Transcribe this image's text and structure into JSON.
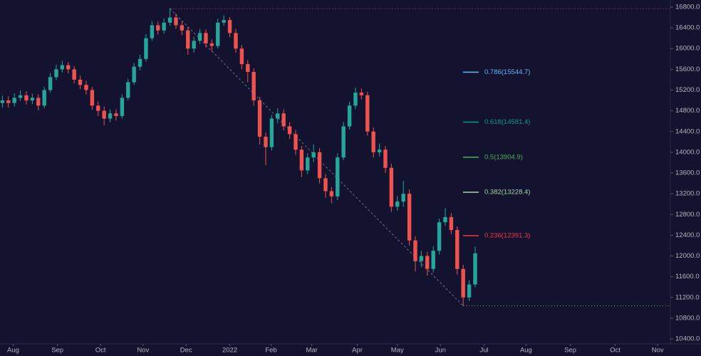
{
  "chart_data": {
    "type": "candlestick",
    "open": [
      14950,
      15000,
      14950,
      15050,
      15100,
      15000,
      15050,
      14900,
      15200,
      15450,
      15600,
      15680,
      15600,
      15400,
      15300,
      15200,
      14900,
      14800,
      14650,
      14750,
      14700,
      15050,
      15350,
      15650,
      15800,
      16200,
      16450,
      16350,
      16500,
      16600,
      16450,
      16350,
      16000,
      16150,
      16300,
      16100,
      16050,
      16500,
      16550,
      16300,
      16000,
      15700,
      15550,
      15000,
      14300,
      14100,
      14650,
      14750,
      14500,
      14350,
      14050,
      13650,
      13900,
      14000,
      13500,
      13250,
      13150,
      13900,
      14500,
      14900,
      15150,
      15100,
      14400,
      14000,
      14050,
      13700,
      12950,
      13050,
      13200,
      12300,
      11900,
      12000,
      11750,
      12100,
      12650,
      12750,
      12500,
      11750,
      11200,
      11450
    ],
    "high": [
      15090,
      15080,
      15140,
      15190,
      15180,
      15130,
      15120,
      15260,
      15530,
      15690,
      15760,
      15740,
      15660,
      15480,
      15380,
      15260,
      14980,
      14880,
      14830,
      14830,
      15120,
      15420,
      15720,
      15880,
      16280,
      16530,
      16520,
      16580,
      16780,
      16680,
      16520,
      16420,
      16230,
      16380,
      16370,
      16180,
      16580,
      16640,
      16610,
      16380,
      16070,
      15780,
      15620,
      15070,
      14380,
      14720,
      14850,
      14830,
      14580,
      14430,
      14120,
      13980,
      14150,
      14080,
      13580,
      13330,
      13980,
      14580,
      14980,
      15250,
      15230,
      15170,
      14480,
      14170,
      14120,
      13780,
      13150,
      13450,
      13280,
      12380,
      12100,
      12080,
      12190,
      12720,
      12920,
      12830,
      12570,
      11830,
      11530,
      12180
    ],
    "low": [
      14860,
      14860,
      14880,
      14990,
      14920,
      14930,
      14810,
      14850,
      15150,
      15390,
      15540,
      15520,
      15330,
      15220,
      15110,
      14820,
      14700,
      14520,
      14580,
      14610,
      14650,
      15000,
      15300,
      15580,
      15750,
      16150,
      16270,
      16290,
      16440,
      16380,
      16260,
      15880,
      15920,
      16090,
      16020,
      15940,
      16000,
      16440,
      16220,
      15920,
      15600,
      15350,
      14900,
      14150,
      13750,
      14030,
      14560,
      14420,
      14260,
      13950,
      13520,
      13580,
      13810,
      13400,
      13120,
      13020,
      13080,
      13850,
      14440,
      14830,
      15020,
      14320,
      13900,
      13920,
      13600,
      12850,
      12870,
      12950,
      12200,
      11700,
      11780,
      11620,
      11680,
      12030,
      12580,
      12420,
      11640,
      11040,
      11130,
      11400
    ],
    "close": [
      15000,
      14950,
      15050,
      15100,
      15000,
      15050,
      14900,
      15200,
      15450,
      15600,
      15680,
      15600,
      15400,
      15300,
      15200,
      14900,
      14800,
      14650,
      14750,
      14700,
      15050,
      15350,
      15650,
      15800,
      16200,
      16450,
      16350,
      16500,
      16600,
      16450,
      16350,
      16000,
      16150,
      16300,
      16100,
      16050,
      16500,
      16550,
      16300,
      16000,
      15700,
      15550,
      15000,
      14300,
      14100,
      14650,
      14750,
      14500,
      14350,
      14050,
      13650,
      13900,
      14000,
      13500,
      13250,
      13150,
      13900,
      14500,
      14900,
      15150,
      15100,
      14400,
      14000,
      14050,
      13700,
      12950,
      13050,
      13200,
      12300,
      11900,
      12000,
      11750,
      12100,
      12650,
      12750,
      12500,
      11750,
      11200,
      11450,
      12050
    ],
    "up_color": "#26a69a",
    "down_color": "#ef5350",
    "xlim": [
      -0.4,
      111.5
    ],
    "xticks": [
      {
        "value": 1.8,
        "label": "Aug"
      },
      {
        "value": 9.2,
        "label": "Sep"
      },
      {
        "value": 16.4,
        "label": "Oct"
      },
      {
        "value": 23.5,
        "label": "Nov"
      },
      {
        "value": 30.7,
        "label": "Dec"
      },
      {
        "value": 38,
        "label": "2022"
      },
      {
        "value": 44.9,
        "label": "Feb"
      },
      {
        "value": 51.7,
        "label": "Mar"
      },
      {
        "value": 59.3,
        "label": "Apr"
      },
      {
        "value": 66,
        "label": "May"
      },
      {
        "value": 73.2,
        "label": "Jun"
      },
      {
        "value": 80.5,
        "label": "Jul"
      },
      {
        "value": 87.5,
        "label": "Aug"
      },
      {
        "value": 94.9,
        "label": "Sep"
      },
      {
        "value": 102.4,
        "label": "Oct"
      },
      {
        "value": 109.5,
        "label": "Nov"
      }
    ],
    "ylim": [
      10304,
      16937
    ],
    "yticks": [
      {
        "value": 10400,
        "label": "10400.0"
      },
      {
        "value": 10800,
        "label": "10800.0"
      },
      {
        "value": 11200,
        "label": "11200.0"
      },
      {
        "value": 11600,
        "label": "11600.0"
      },
      {
        "value": 12000,
        "label": "12000.0"
      },
      {
        "value": 12400,
        "label": "12400.0"
      },
      {
        "value": 12800,
        "label": "12800.0"
      },
      {
        "value": 13200,
        "label": "13200.0"
      },
      {
        "value": 13600,
        "label": "13600.0"
      },
      {
        "value": 14000,
        "label": "14000.0"
      },
      {
        "value": 14400,
        "label": "14400.0"
      },
      {
        "value": 14800,
        "label": "14800.0"
      },
      {
        "value": 15200,
        "label": "15200.0"
      },
      {
        "value": 15600,
        "label": "15600.0"
      },
      {
        "value": 16000,
        "label": "16000.0"
      },
      {
        "value": 16400,
        "label": "16400.0"
      },
      {
        "value": 16800,
        "label": "16800.0"
      }
    ],
    "fib_high": {
      "index": 28,
      "value": 16771.7,
      "color": "#f23645"
    },
    "fib_low": {
      "index": 77,
      "value": 11038.2,
      "color": "#4caf50"
    },
    "fib_levels": [
      {
        "value": 15544.7,
        "label": "0.786(15544.7)",
        "color": "#64b5f6"
      },
      {
        "value": 14581.4,
        "label": "0.618(14581.4)",
        "color": "#089981"
      },
      {
        "value": 13904.9,
        "label": "0.5(13904.9)",
        "color": "#4caf50"
      },
      {
        "value": 13228.4,
        "label": "0.382(13228.4)",
        "color": "#a5d6a7"
      },
      {
        "value": 12391.3,
        "label": "0.236(12391.3)",
        "color": "#f23645"
      }
    ]
  }
}
